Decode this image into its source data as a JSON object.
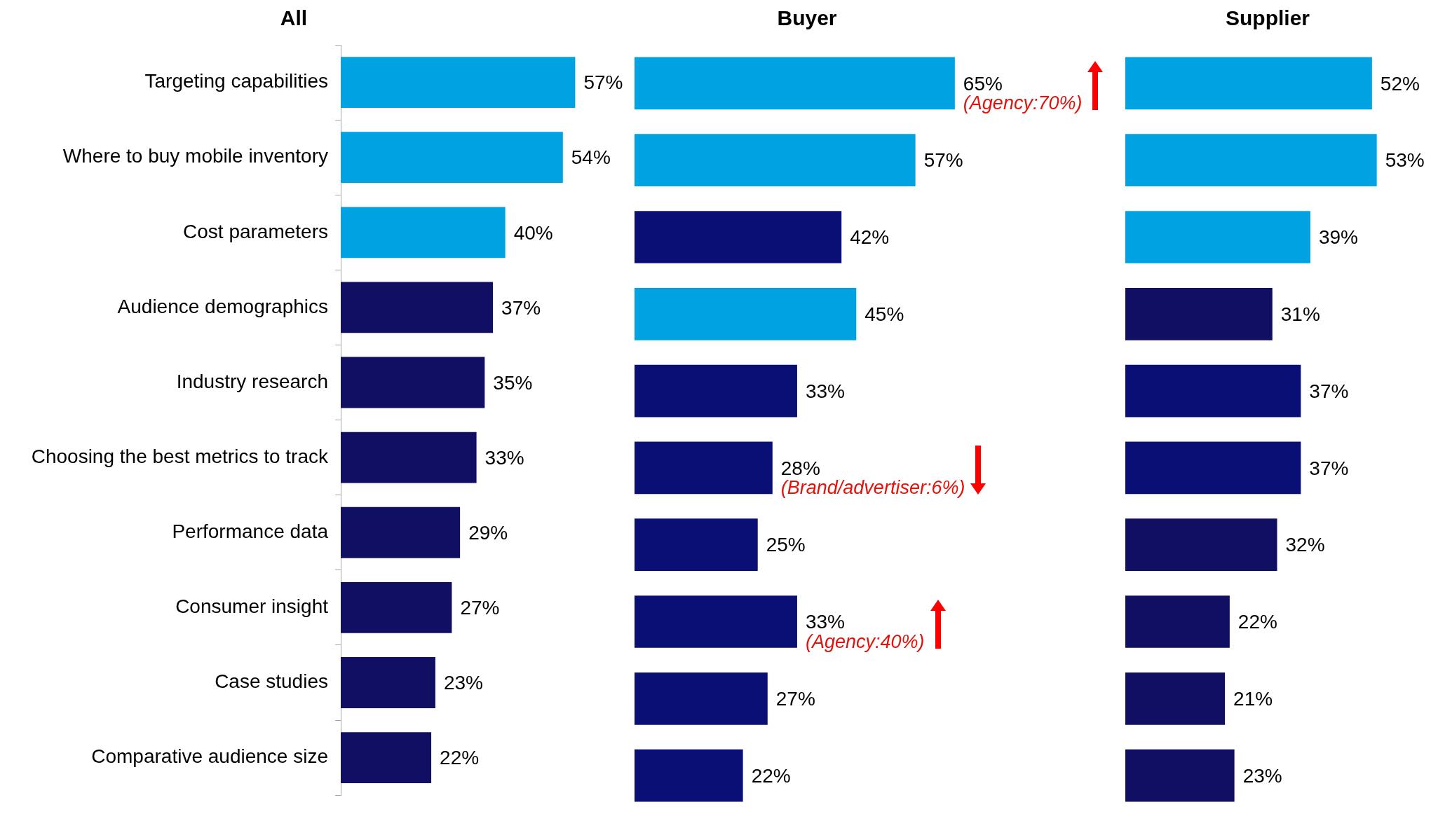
{
  "chart_data": [
    {
      "type": "bar",
      "orientation": "horizontal",
      "title": "All",
      "categories": [
        "Targeting capabilities",
        "Where to buy mobile inventory",
        "Cost parameters",
        "Audience demographics",
        "Industry research",
        "Choosing the best metrics to track",
        "Performance data",
        "Consumer insight",
        "Case studies",
        "Comparative audience size"
      ],
      "values": [
        57,
        54,
        40,
        37,
        35,
        33,
        29,
        27,
        23,
        22
      ],
      "value_labels": [
        "57%",
        "54%",
        "40%",
        "37%",
        "35%",
        "33%",
        "29%",
        "27%",
        "23%",
        "22%"
      ],
      "colors": [
        "#00a2e1",
        "#00a2e1",
        "#00a2e1",
        "#110f63",
        "#110f63",
        "#110f63",
        "#110f63",
        "#110f63",
        "#110f63",
        "#110f63"
      ],
      "tick_labels": "y",
      "grid": false,
      "legend": false
    },
    {
      "type": "bar",
      "orientation": "horizontal",
      "title": "Buyer",
      "categories": [
        null,
        null,
        null,
        null,
        null,
        null,
        null,
        null,
        null,
        null
      ],
      "values": [
        65,
        57,
        42,
        45,
        33,
        28,
        25,
        33,
        27,
        22
      ],
      "value_labels": [
        "65%",
        "57%",
        "42%",
        "45%",
        "33%",
        "28%",
        "25%",
        "33%",
        "27%",
        "22%"
      ],
      "colors": [
        "#00a2e1",
        "#00a2e1",
        "#0a0f76",
        "#00a2e1",
        "#0a0f76",
        "#0a0f76",
        "#0a0f76",
        "#0a0f76",
        "#0a0f76",
        "#0a0f76"
      ],
      "tick_labels": false,
      "grid": false,
      "legend": false,
      "annotations": [
        "(Agency:70%)",
        "(Brand/advertiser:6%)",
        "(Agency:40%)"
      ]
    },
    {
      "type": "bar",
      "orientation": "horizontal",
      "title": "Supplier",
      "categories": [
        null,
        null,
        null,
        null,
        null,
        null,
        null,
        null,
        null,
        null
      ],
      "values": [
        52,
        53,
        39,
        31,
        37,
        37,
        32,
        22,
        21,
        23
      ],
      "value_labels": [
        "52%",
        "53%",
        "39%",
        "31%",
        "37%",
        "37%",
        "32%",
        "22%",
        "21%",
        "23%"
      ],
      "colors": [
        "#00a2e1",
        "#00a2e1",
        "#00a2e1",
        "#110f63",
        "#0a0f76",
        "#0a0f76",
        "#110f63",
        "#110f63",
        "#110f63",
        "#110f63"
      ],
      "tick_labels": false,
      "grid": false,
      "legend": false
    }
  ]
}
